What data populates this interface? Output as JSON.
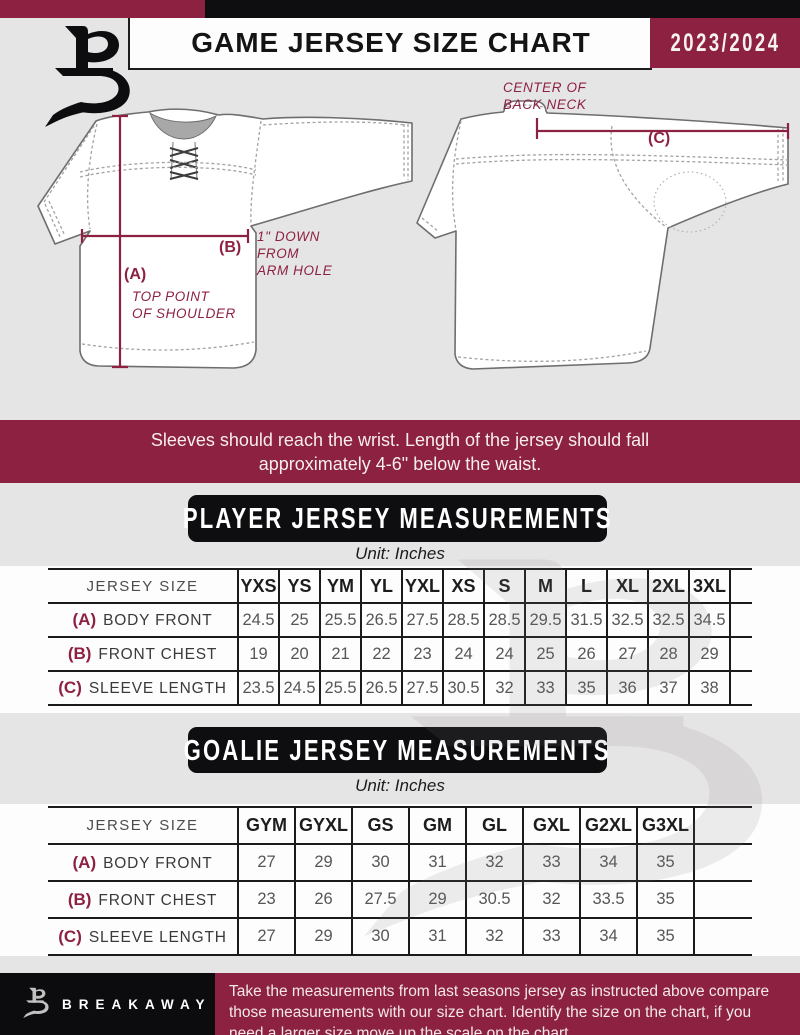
{
  "header": {
    "title": "GAME JERSEY SIZE CHART",
    "season": "2023/2024",
    "logo_letter": "B"
  },
  "colors": {
    "maroon": "#8d2141",
    "black": "#0e0e10",
    "background_gray": "#e6e5e6",
    "table_line": "#1b1b1b"
  },
  "diagram": {
    "front": {
      "a_key": "(A)",
      "a_line1": "TOP POINT",
      "a_line2": "OF SHOULDER",
      "b_key": "(B)",
      "b_line1": "1\" DOWN",
      "b_line2": "FROM",
      "b_line3": "ARM HOLE"
    },
    "back": {
      "c_key": "(C)",
      "c_line1": "CENTER OF",
      "c_line2": "BACK NECK"
    }
  },
  "notice": "Sleeves should reach the wrist. Length of the jersey should fall approximately 4-6\" below the waist.",
  "player_table": {
    "title": "PLAYER JERSEY MEASUREMENTS",
    "unit": "Unit: Inches",
    "row_header": "JERSEY SIZE",
    "columns": [
      "YXS",
      "YS",
      "YM",
      "YL",
      "YXL",
      "XS",
      "S",
      "M",
      "L",
      "XL",
      "2XL",
      "3XL"
    ],
    "rows": [
      {
        "key": "(A)",
        "label": "BODY FRONT",
        "values": [
          "24.5",
          "25",
          "25.5",
          "26.5",
          "27.5",
          "28.5",
          "28.5",
          "29.5",
          "31.5",
          "32.5",
          "32.5",
          "34.5"
        ]
      },
      {
        "key": "(B)",
        "label": "FRONT CHEST",
        "values": [
          "19",
          "20",
          "21",
          "22",
          "23",
          "24",
          "24",
          "25",
          "26",
          "27",
          "28",
          "29"
        ]
      },
      {
        "key": "(C)",
        "label": "SLEEVE LENGTH",
        "values": [
          "23.5",
          "24.5",
          "25.5",
          "26.5",
          "27.5",
          "30.5",
          "32",
          "33",
          "35",
          "36",
          "37",
          "38"
        ]
      }
    ]
  },
  "goalie_table": {
    "title": "GOALIE JERSEY MEASUREMENTS",
    "unit": "Unit: Inches",
    "row_header": "JERSEY SIZE",
    "columns": [
      "GYM",
      "GYXL",
      "GS",
      "GM",
      "GL",
      "GXL",
      "G2XL",
      "G3XL"
    ],
    "rows": [
      {
        "key": "(A)",
        "label": "BODY FRONT",
        "values": [
          "27",
          "29",
          "30",
          "31",
          "32",
          "33",
          "34",
          "35"
        ]
      },
      {
        "key": "(B)",
        "label": "FRONT CHEST",
        "values": [
          "23",
          "26",
          "27.5",
          "29",
          "30.5",
          "32",
          "33.5",
          "35"
        ]
      },
      {
        "key": "(C)",
        "label": "SLEEVE LENGTH",
        "values": [
          "27",
          "29",
          "30",
          "31",
          "32",
          "33",
          "34",
          "35"
        ]
      }
    ]
  },
  "footer": {
    "brand": "BREAKAWAY",
    "text": "Take the measurements from last seasons jersey as instructed above compare those measurements  with our size chart. Identify the size on the chart, if you need a larger size move up the scale on the chart"
  }
}
